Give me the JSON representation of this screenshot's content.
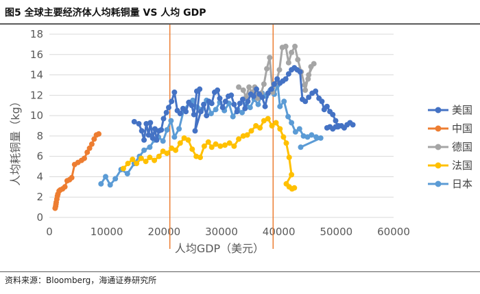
{
  "figure": {
    "title": "图5  全球主要经济体人均耗铜量 VS 人均 GDP",
    "source": "资料来源：Bloomberg，海通证券研究所"
  },
  "chart_data": {
    "type": "scatter",
    "title": "",
    "xlabel": "人均GDP（美元）",
    "ylabel": "人均耗铜量（kg）",
    "xlim": [
      0,
      60000
    ],
    "ylim": [
      0,
      18
    ],
    "x_ticks": [
      0,
      10000,
      20000,
      30000,
      40000,
      50000,
      60000
    ],
    "y_ticks": [
      0,
      2,
      4,
      6,
      8,
      10,
      12,
      14,
      16,
      18
    ],
    "grid": "horizontal",
    "legend_position": "right",
    "vertical_lines": [
      {
        "x": 21000,
        "color": "#ED7D31"
      },
      {
        "x": 39000,
        "color": "#ED7D31"
      }
    ],
    "series": [
      {
        "name": "日本",
        "color": "#5B9BD5",
        "points": [
          [
            9000,
            3.3
          ],
          [
            9800,
            4.0
          ],
          [
            10600,
            3.2
          ],
          [
            11500,
            3.8
          ],
          [
            12500,
            4.7
          ],
          [
            13600,
            4.3
          ],
          [
            14800,
            5.3
          ],
          [
            15700,
            6.0
          ],
          [
            16500,
            6.6
          ],
          [
            17500,
            6.9
          ],
          [
            18300,
            7.6
          ],
          [
            19000,
            7.9
          ],
          [
            19800,
            7.5
          ],
          [
            20500,
            8.6
          ],
          [
            21200,
            9.5
          ],
          [
            21800,
            7.9
          ],
          [
            22600,
            8.7
          ],
          [
            23400,
            10.5
          ],
          [
            24400,
            11.3
          ],
          [
            25000,
            11.5
          ],
          [
            25800,
            10.8
          ],
          [
            26500,
            10.6
          ],
          [
            27400,
            11.5
          ],
          [
            28200,
            10.2
          ],
          [
            29000,
            10.6
          ],
          [
            29700,
            11.3
          ],
          [
            30500,
            10.5
          ],
          [
            31300,
            11.2
          ],
          [
            32000,
            9.9
          ],
          [
            32800,
            10.6
          ],
          [
            33600,
            10.3
          ],
          [
            34300,
            11.1
          ],
          [
            35000,
            10.8
          ],
          [
            35700,
            11.6
          ],
          [
            36400,
            11.1
          ],
          [
            37100,
            12.2
          ],
          [
            37800,
            11.9
          ],
          [
            38500,
            12.5
          ],
          [
            39200,
            12.1
          ],
          [
            39800,
            13.0
          ],
          [
            40200,
            10.9
          ],
          [
            40900,
            11.4
          ],
          [
            41600,
            9.9
          ],
          [
            42200,
            9.3
          ],
          [
            42900,
            8.4
          ],
          [
            43600,
            8.7
          ],
          [
            44300,
            8.0
          ],
          [
            45000,
            7.9
          ],
          [
            45700,
            8.1
          ],
          [
            46500,
            7.9
          ],
          [
            47300,
            7.8
          ],
          [
            43800,
            6.9
          ]
        ]
      },
      {
        "name": "法国",
        "color": "#FFC000",
        "points": [
          [
            12900,
            4.8
          ],
          [
            13700,
            5.3
          ],
          [
            14500,
            5.7
          ],
          [
            15200,
            5.3
          ],
          [
            16000,
            5.8
          ],
          [
            16800,
            5.5
          ],
          [
            17500,
            5.9
          ],
          [
            18300,
            5.6
          ],
          [
            19100,
            6.0
          ],
          [
            19800,
            6.5
          ],
          [
            20500,
            6.3
          ],
          [
            21300,
            6.8
          ],
          [
            22000,
            6.6
          ],
          [
            22800,
            7.3
          ],
          [
            23500,
            7.8
          ],
          [
            24200,
            7.6
          ],
          [
            24900,
            6.7
          ],
          [
            25600,
            6.0
          ],
          [
            26300,
            5.9
          ],
          [
            27000,
            7.0
          ],
          [
            27700,
            7.4
          ],
          [
            28300,
            6.9
          ],
          [
            29000,
            7.2
          ],
          [
            29800,
            7.0
          ],
          [
            30600,
            7.1
          ],
          [
            31400,
            7.3
          ],
          [
            32200,
            7.0
          ],
          [
            33000,
            7.7
          ],
          [
            33800,
            8.0
          ],
          [
            34500,
            8.1
          ],
          [
            35200,
            8.5
          ],
          [
            36000,
            9.0
          ],
          [
            36700,
            8.8
          ],
          [
            37400,
            9.5
          ],
          [
            38100,
            9.7
          ],
          [
            38800,
            9.0
          ],
          [
            39500,
            9.3
          ],
          [
            40200,
            8.7
          ],
          [
            40800,
            7.9
          ],
          [
            41300,
            7.3
          ],
          [
            41800,
            5.9
          ],
          [
            42200,
            4.2
          ],
          [
            41300,
            3.3
          ],
          [
            41800,
            3.0
          ],
          [
            42300,
            2.8
          ],
          [
            42700,
            2.9
          ]
        ]
      },
      {
        "name": "德国",
        "color": "#A5A5A5",
        "points": [
          [
            33000,
            12.8
          ],
          [
            33800,
            12.5
          ],
          [
            34300,
            11.8
          ],
          [
            34800,
            12.8
          ],
          [
            35300,
            12.3
          ],
          [
            35800,
            12.8
          ],
          [
            36300,
            11.7
          ],
          [
            36900,
            12.2
          ],
          [
            37400,
            13.1
          ],
          [
            37900,
            14.6
          ],
          [
            38400,
            15.7
          ],
          [
            38900,
            12.3
          ],
          [
            39500,
            13.2
          ],
          [
            40100,
            14.5
          ],
          [
            40600,
            16.7
          ],
          [
            41200,
            16.8
          ],
          [
            41700,
            15.2
          ],
          [
            42200,
            16.2
          ],
          [
            42800,
            16.8
          ],
          [
            43300,
            15.5
          ],
          [
            43900,
            14.3
          ],
          [
            44500,
            13.0
          ],
          [
            45100,
            13.6
          ],
          [
            45600,
            14.8
          ],
          [
            46100,
            15.1
          ],
          [
            45200,
            14.0
          ],
          [
            44600,
            12.5
          ]
        ]
      },
      {
        "name": "中国",
        "color": "#ED7D31",
        "points": [
          [
            1000,
            0.9
          ],
          [
            1100,
            1.1
          ],
          [
            1150,
            1.3
          ],
          [
            1200,
            1.5
          ],
          [
            1300,
            1.8
          ],
          [
            1400,
            2.1
          ],
          [
            1500,
            2.3
          ],
          [
            1700,
            2.6
          ],
          [
            1900,
            2.7
          ],
          [
            2300,
            2.8
          ],
          [
            2700,
            3.0
          ],
          [
            3100,
            3.6
          ],
          [
            3500,
            3.7
          ],
          [
            3900,
            3.9
          ],
          [
            4400,
            5.2
          ],
          [
            5000,
            5.4
          ],
          [
            5600,
            5.6
          ],
          [
            6100,
            5.8
          ],
          [
            6600,
            6.4
          ],
          [
            7000,
            6.8
          ],
          [
            7400,
            7.2
          ],
          [
            7800,
            7.7
          ],
          [
            8200,
            8.1
          ],
          [
            8600,
            8.2
          ]
        ]
      },
      {
        "name": "美国",
        "color": "#4472C4",
        "points": [
          [
            14800,
            9.4
          ],
          [
            15600,
            9.2
          ],
          [
            16100,
            8.5
          ],
          [
            16500,
            7.6
          ],
          [
            16900,
            9.2
          ],
          [
            17300,
            8.1
          ],
          [
            17600,
            9.3
          ],
          [
            18000,
            7.8
          ],
          [
            18400,
            8.7
          ],
          [
            18700,
            7.6
          ],
          [
            19100,
            8.5
          ],
          [
            19500,
            8.6
          ],
          [
            19900,
            9.7
          ],
          [
            20400,
            10.3
          ],
          [
            20800,
            10.8
          ],
          [
            21300,
            11.4
          ],
          [
            21800,
            12.3
          ],
          [
            22300,
            10.5
          ],
          [
            22800,
            10.2
          ],
          [
            23300,
            10.7
          ],
          [
            23800,
            10.4
          ],
          [
            24300,
            11.3
          ],
          [
            24800,
            11.0
          ],
          [
            25200,
            10.1
          ],
          [
            25700,
            12.4
          ],
          [
            26200,
            12.6
          ],
          [
            25400,
            8.5
          ],
          [
            26400,
            10.4
          ],
          [
            26900,
            11.1
          ],
          [
            27400,
            10.0
          ],
          [
            27800,
            11.4
          ],
          [
            28300,
            11.2
          ],
          [
            28800,
            12.3
          ],
          [
            29300,
            12.5
          ],
          [
            29700,
            11.7
          ],
          [
            30200,
            10.8
          ],
          [
            30700,
            11.4
          ],
          [
            31200,
            11.9
          ],
          [
            31700,
            12.0
          ],
          [
            32200,
            11.1
          ],
          [
            32700,
            10.4
          ],
          [
            33200,
            11.2
          ],
          [
            33700,
            11.6
          ],
          [
            34100,
            10.7
          ],
          [
            34600,
            11.4
          ],
          [
            35100,
            12.1
          ],
          [
            35600,
            11.9
          ],
          [
            36100,
            12.6
          ],
          [
            36600,
            12.1
          ],
          [
            37100,
            11.8
          ],
          [
            37600,
            10.9
          ],
          [
            38100,
            12.2
          ],
          [
            38700,
            12.6
          ],
          [
            39200,
            13.1
          ],
          [
            39700,
            13.6
          ],
          [
            40200,
            13.2
          ],
          [
            40700,
            13.4
          ],
          [
            41200,
            13.6
          ],
          [
            41700,
            14.1
          ],
          [
            42200,
            14.5
          ],
          [
            42700,
            14.7
          ],
          [
            43200,
            14.5
          ],
          [
            43700,
            14.3
          ],
          [
            44100,
            11.6
          ],
          [
            44600,
            11.4
          ],
          [
            45200,
            11.8
          ],
          [
            45800,
            12.2
          ],
          [
            46400,
            12.4
          ],
          [
            47000,
            11.7
          ],
          [
            47500,
            11.4
          ],
          [
            47900,
            10.6
          ],
          [
            48400,
            10.9
          ],
          [
            48900,
            10.4
          ],
          [
            49400,
            10.1
          ],
          [
            49900,
            9.5
          ],
          [
            50300,
            8.9
          ],
          [
            48400,
            8.8
          ],
          [
            48900,
            8.9
          ],
          [
            49400,
            8.7
          ],
          [
            49900,
            8.9
          ],
          [
            50400,
            9.0
          ],
          [
            50900,
            9.0
          ],
          [
            51400,
            8.8
          ],
          [
            51900,
            9.1
          ],
          [
            52400,
            9.3
          ],
          [
            52900,
            9.1
          ]
        ]
      }
    ],
    "legend_order": [
      "美国",
      "中国",
      "德国",
      "法国",
      "日本"
    ]
  }
}
